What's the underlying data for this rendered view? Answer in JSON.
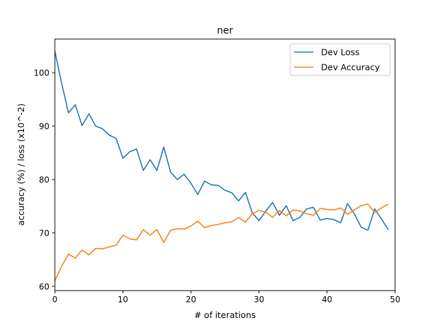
{
  "chart_data": {
    "type": "line",
    "title": "ner",
    "xlabel": "# of iterations",
    "ylabel": "accuracy (%) / loss (x10^-2)",
    "xlim": [
      0,
      50
    ],
    "ylim": [
      59.2,
      106.3
    ],
    "xticks": [
      0,
      10,
      20,
      30,
      40,
      50
    ],
    "yticks": [
      60,
      70,
      80,
      90,
      100
    ],
    "grid": false,
    "legend_position": "top-right",
    "x": [
      0,
      1,
      2,
      3,
      4,
      5,
      6,
      7,
      8,
      9,
      10,
      11,
      12,
      13,
      14,
      15,
      16,
      17,
      18,
      19,
      20,
      21,
      22,
      23,
      24,
      25,
      26,
      27,
      28,
      29,
      30,
      31,
      32,
      33,
      34,
      35,
      36,
      37,
      38,
      39,
      40,
      41,
      42,
      43,
      44,
      45,
      46,
      47,
      48,
      49
    ],
    "series": [
      {
        "name": "Dev Loss",
        "color": "#1f77b4",
        "values": [
          104.0,
          98.0,
          92.5,
          94.0,
          90.1,
          92.3,
          90.0,
          89.5,
          88.3,
          87.7,
          84.0,
          85.2,
          85.7,
          81.7,
          83.7,
          81.7,
          86.1,
          81.4,
          80.0,
          81.0,
          79.3,
          77.2,
          79.7,
          79.0,
          78.9,
          78.0,
          77.5,
          76.0,
          77.6,
          73.8,
          72.3,
          74.1,
          75.7,
          73.3,
          75.1,
          72.3,
          72.9,
          74.5,
          74.8,
          72.4,
          72.7,
          72.5,
          71.9,
          75.5,
          73.6,
          71.1,
          70.5,
          74.5,
          72.6,
          70.6
        ]
      },
      {
        "name": "Dev Accuracy",
        "color": "#ff7f0e",
        "values": [
          61.0,
          63.8,
          66.0,
          65.3,
          66.8,
          65.9,
          67.1,
          67.0,
          67.4,
          67.7,
          69.6,
          68.9,
          68.7,
          70.6,
          69.6,
          70.6,
          68.2,
          70.5,
          70.8,
          70.7,
          71.3,
          72.2,
          71.0,
          71.4,
          71.6,
          71.9,
          72.1,
          72.9,
          72.0,
          73.6,
          74.2,
          73.9,
          72.9,
          74.2,
          73.2,
          74.3,
          74.1,
          73.6,
          73.3,
          74.6,
          74.4,
          74.3,
          74.7,
          73.5,
          74.3,
          75.1,
          75.4,
          73.8,
          74.7,
          75.4
        ]
      }
    ]
  }
}
